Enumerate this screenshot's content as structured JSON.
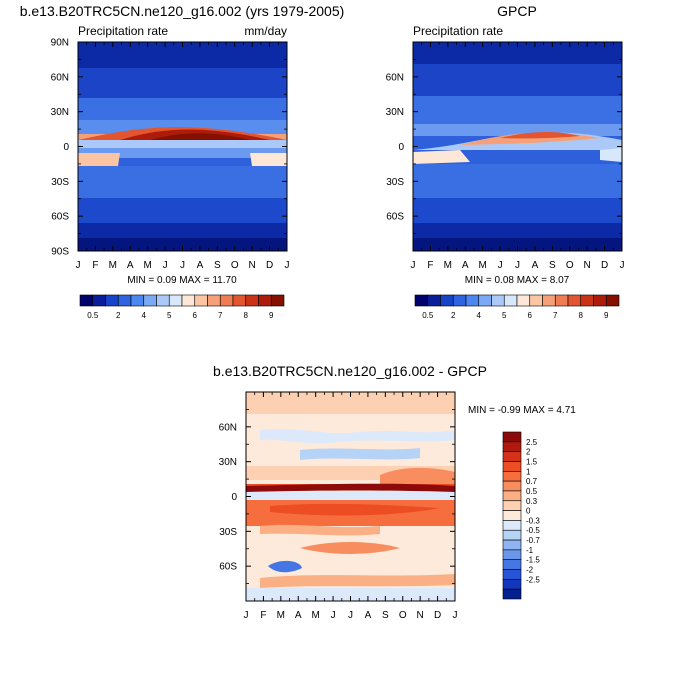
{
  "chart_data": [
    {
      "type": "heatmap",
      "title": "b.e13.B20TRC5CN.ne120_g16.002 (yrs 1979-2005)",
      "subtitle_left": "Precipitation rate",
      "subtitle_right": "mm/day",
      "x_ticks": [
        "J",
        "F",
        "M",
        "A",
        "M",
        "J",
        "J",
        "A",
        "S",
        "O",
        "N",
        "D",
        "J"
      ],
      "y_ticks": [
        "90N",
        "60N",
        "30N",
        "0",
        "30S",
        "60S",
        "90S"
      ],
      "y_tick_lats": [
        90,
        60,
        30,
        0,
        -30,
        -60,
        -90
      ],
      "ylim": [
        -90,
        90
      ],
      "stats": "MIN =  0.09 MAX =  11.70",
      "min": 0.09,
      "max": 11.7,
      "colorbar_orientation": "horizontal",
      "colorbar_labels": [
        "0.5",
        "2",
        "4",
        "5",
        "6",
        "7",
        "8",
        "9"
      ],
      "colorbar_label_positions": [
        1,
        3,
        5,
        7,
        9,
        11,
        13,
        15
      ],
      "colorbar_colors": [
        "#00036b",
        "#0a1e9c",
        "#1643c8",
        "#2f63e0",
        "#4c86f0",
        "#7aaaf5",
        "#aac9f8",
        "#d8e8fb",
        "#fde7d6",
        "#fbc5a3",
        "#f6a07a",
        "#f07d52",
        "#e2552e",
        "#cb3316",
        "#ad1c0a",
        "#851000"
      ]
    },
    {
      "type": "heatmap",
      "title": "GPCP",
      "subtitle_left": "Precipitation rate",
      "x_ticks": [
        "J",
        "F",
        "M",
        "A",
        "M",
        "J",
        "J",
        "A",
        "S",
        "O",
        "N",
        "D",
        "J"
      ],
      "y_ticks": [
        "60N",
        "30N",
        "0",
        "30S",
        "60S"
      ],
      "y_tick_lats": [
        60,
        30,
        0,
        -30,
        -60
      ],
      "ylim": [
        -90,
        90
      ],
      "stats": "MIN =  0.08 MAX =  8.07",
      "min": 0.08,
      "max": 8.07,
      "colorbar_orientation": "horizontal",
      "colorbar_labels": [
        "0.5",
        "2",
        "4",
        "5",
        "6",
        "7",
        "8",
        "9"
      ],
      "colorbar_label_positions": [
        1,
        3,
        5,
        7,
        9,
        11,
        13,
        15
      ],
      "colorbar_colors": [
        "#00036b",
        "#0a1e9c",
        "#1643c8",
        "#2f63e0",
        "#4c86f0",
        "#7aaaf5",
        "#aac9f8",
        "#d8e8fb",
        "#fde7d6",
        "#fbc5a3",
        "#f6a07a",
        "#f07d52",
        "#e2552e",
        "#cb3316",
        "#ad1c0a",
        "#851000"
      ]
    },
    {
      "type": "heatmap",
      "title": "b.e13.B20TRC5CN.ne120_g16.002 - GPCP",
      "x_ticks": [
        "J",
        "F",
        "M",
        "A",
        "M",
        "J",
        "J",
        "A",
        "S",
        "O",
        "N",
        "D",
        "J"
      ],
      "y_ticks": [
        "60N",
        "30N",
        "0",
        "30S",
        "60S"
      ],
      "y_tick_lats": [
        60,
        30,
        0,
        -30,
        -60
      ],
      "ylim": [
        -90,
        90
      ],
      "stats": "MIN = -0.99 MAX =  4.71",
      "min": -0.99,
      "max": 4.71,
      "colorbar_orientation": "vertical",
      "colorbar_labels": [
        "2.5",
        "2",
        "1.5",
        "1",
        "0.7",
        "0.5",
        "0.3",
        "0",
        "-0.3",
        "-0.5",
        "-0.7",
        "-1",
        "-1.5",
        "-2",
        "-2.5"
      ],
      "colorbar_colors": [
        "#8c0a0a",
        "#b01a0e",
        "#d43218",
        "#ec4d22",
        "#f66e3e",
        "#f88e60",
        "#fab084",
        "#fdd0b2",
        "#fdeadb",
        "#dbe9fb",
        "#b5d2f7",
        "#8fb4f2",
        "#6a96ec",
        "#4676e4",
        "#2654d8",
        "#1037bd",
        "#04208f"
      ]
    }
  ]
}
